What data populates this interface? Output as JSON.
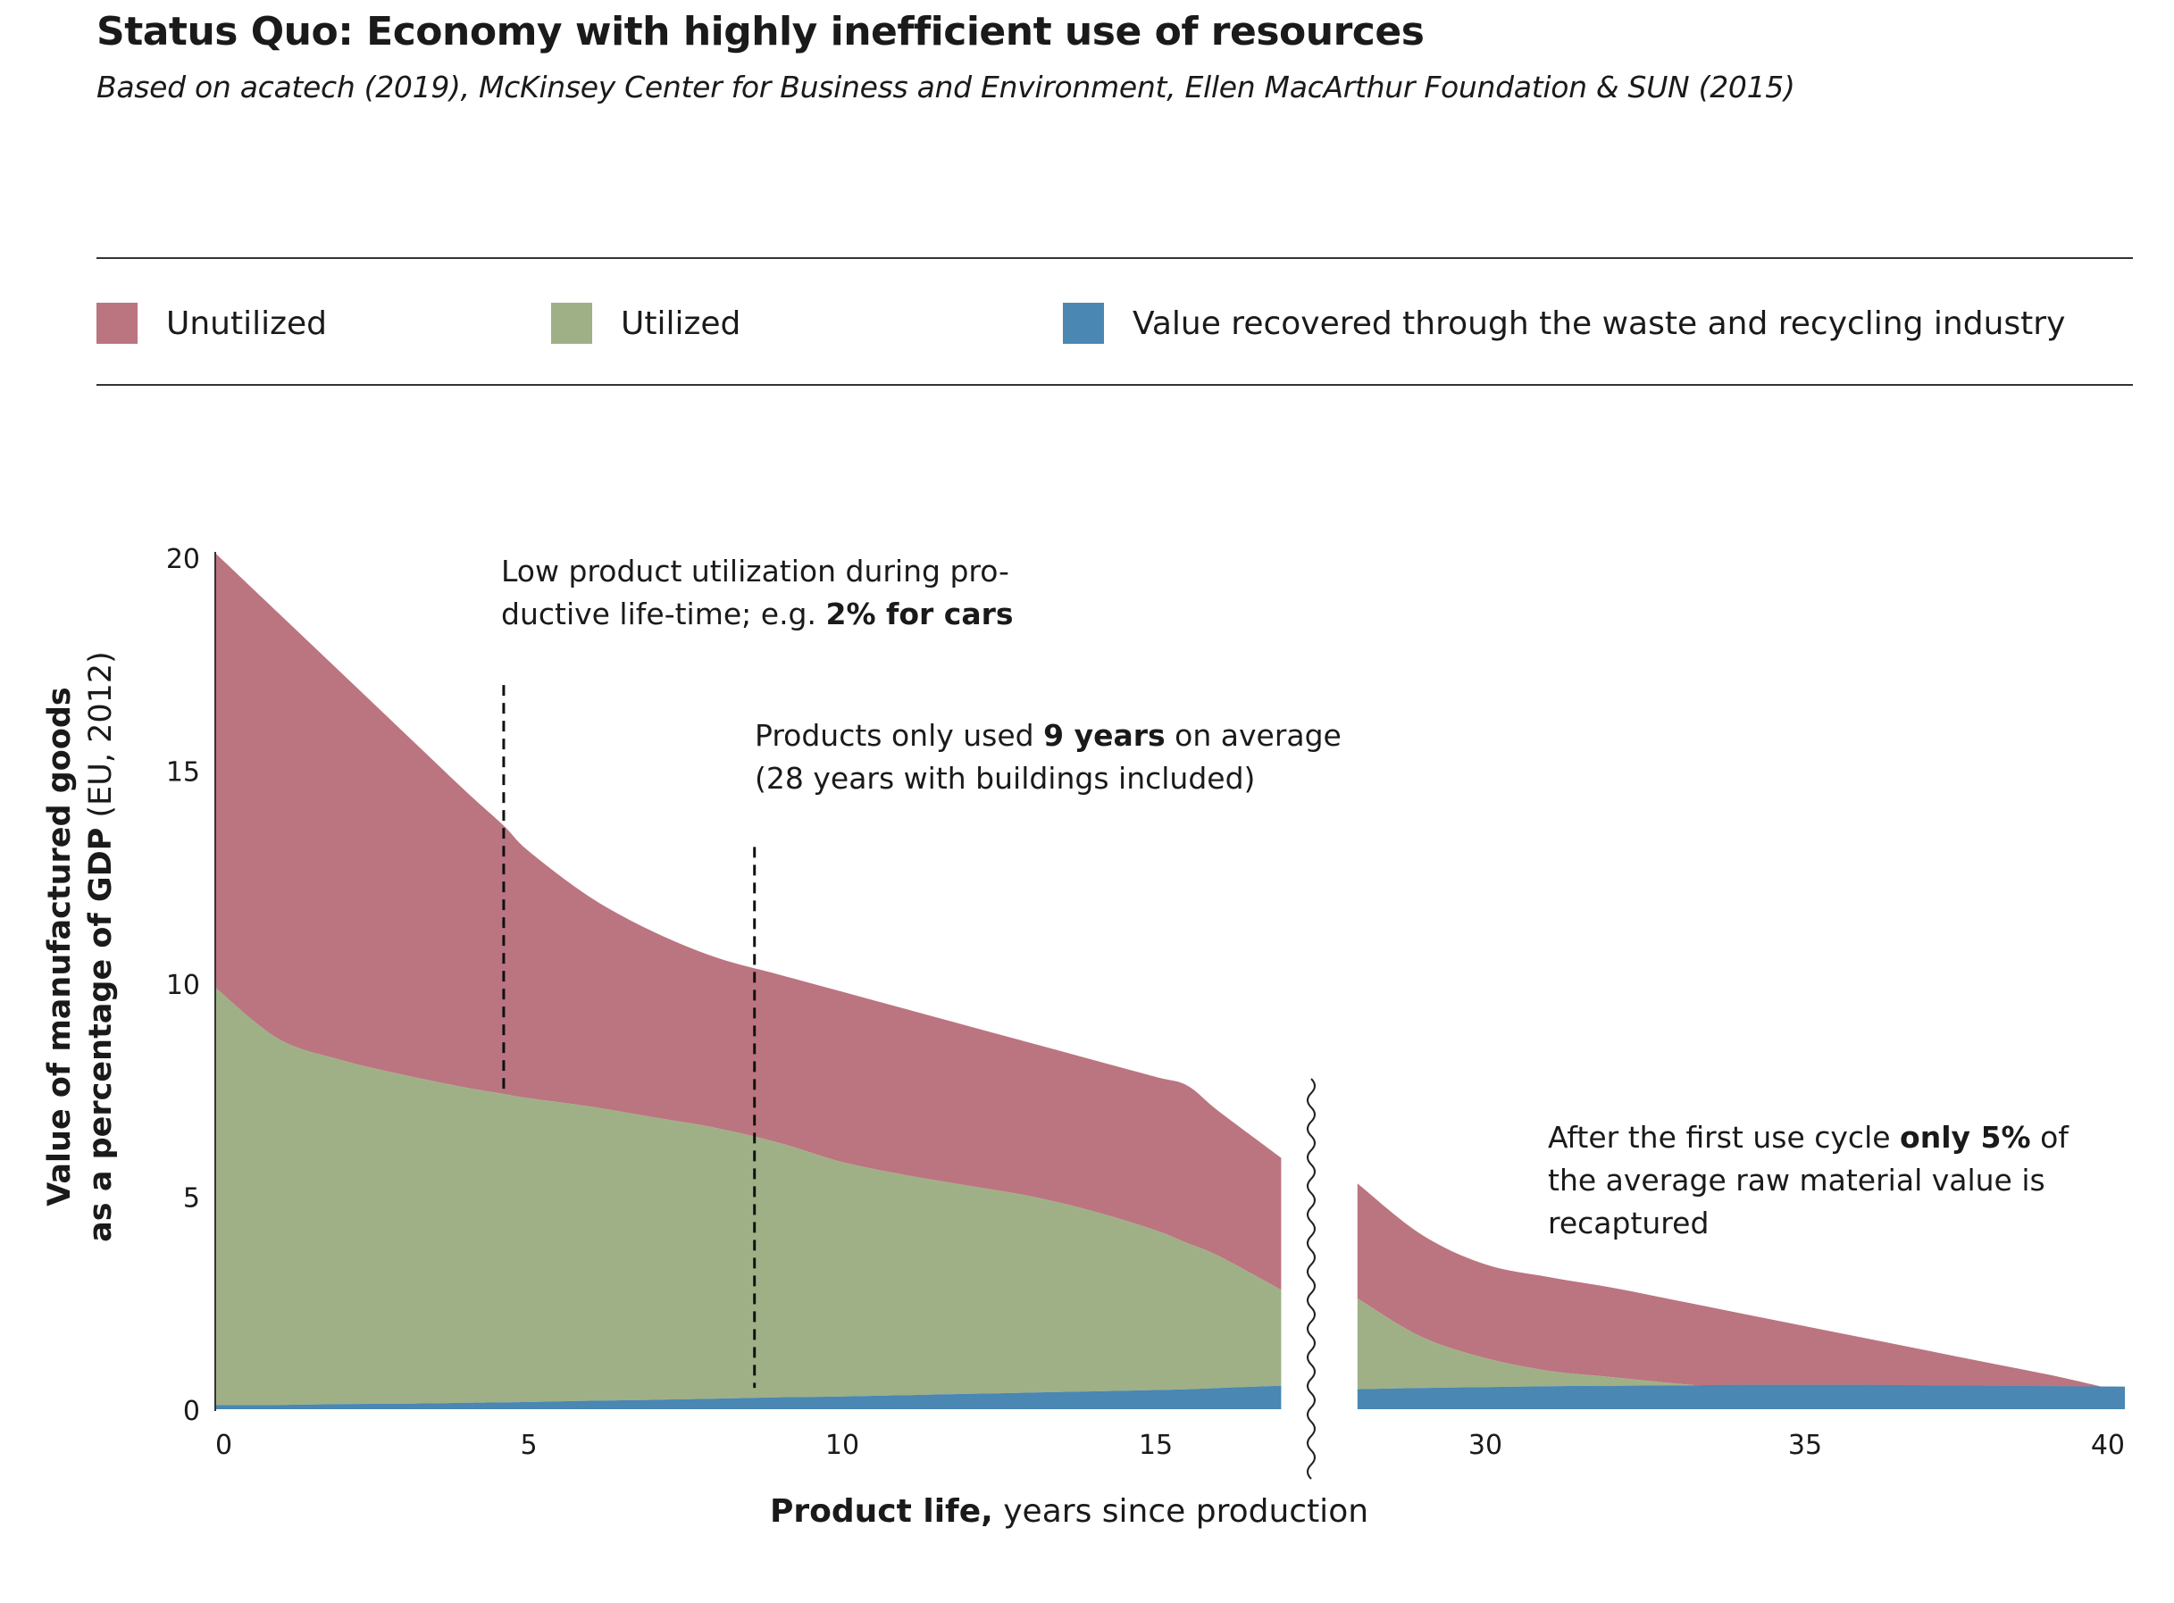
{
  "header": {
    "title": "Status Quo: Economy with highly inefficient use of resources",
    "subtitle": "Based on acatech (2019), McKinsey Center for Business and Environment, Ellen MacArthur Foundation & SUN (2015)"
  },
  "legend": [
    {
      "label": "Unutilized",
      "color": "#bb7580"
    },
    {
      "label": "Utilized",
      "color": "#9fb086"
    },
    {
      "label": "Value recovered through the waste and recycling industry",
      "color": "#4a87b2"
    }
  ],
  "axes": {
    "ylabel_bold_1": "Value of manufactured goods",
    "ylabel_bold_2": "as a percentage of GDP",
    "ylabel_normal_2": "(EU, 2012)",
    "xlabel_bold": "Product life,",
    "xlabel_normal": "years since production"
  },
  "annotations": {
    "utilization": {
      "l1": "Low product utilization during pro-",
      "l2a": "ductive life-time; e.g.",
      "l2b": "2% for cars"
    },
    "nine_years": {
      "l1a": "Products only used",
      "l1b": "9 years",
      "l1c": "on average",
      "l2": "(28 years with buildings included)"
    },
    "recapture": {
      "l1a": "After the first use cycle",
      "l1b": "only 5%",
      "l1c": "of",
      "l2": "the average raw material value is",
      "l3": "recaptured"
    }
  },
  "chart_data": {
    "type": "area",
    "stacked": true,
    "ylim": [
      0,
      20
    ],
    "yticks": [
      0,
      5,
      10,
      15,
      20
    ],
    "axis_break": "between 17 and 28 years",
    "segments": [
      {
        "x": [
          0,
          1,
          2,
          3,
          4,
          4.6,
          5,
          6,
          7,
          8,
          9,
          10,
          11,
          12,
          13,
          14,
          15,
          15.5,
          16,
          17
        ],
        "recovered": [
          0.1,
          0.1,
          0.12,
          0.13,
          0.15,
          0.16,
          0.17,
          0.2,
          0.22,
          0.25,
          0.28,
          0.3,
          0.33,
          0.36,
          0.39,
          0.42,
          0.45,
          0.47,
          0.5,
          0.55
        ],
        "utilized": [
          9.9,
          8.7,
          8.2,
          7.85,
          7.55,
          7.4,
          7.3,
          7.1,
          6.85,
          6.6,
          6.25,
          5.8,
          5.5,
          5.25,
          5.0,
          4.65,
          4.2,
          3.9,
          3.6,
          2.8
        ],
        "total": [
          20.1,
          18.7,
          17.3,
          15.9,
          14.5,
          13.7,
          13.1,
          12.0,
          11.2,
          10.6,
          10.2,
          9.8,
          9.4,
          9.0,
          8.6,
          8.2,
          7.8,
          7.6,
          7.0,
          5.9
        ]
      },
      {
        "x": [
          28,
          29,
          30,
          31,
          32,
          33,
          34,
          35,
          36,
          37,
          38,
          39,
          40
        ],
        "recovered": [
          0.47,
          0.5,
          0.52,
          0.54,
          0.55,
          0.56,
          0.57,
          0.57,
          0.57,
          0.56,
          0.55,
          0.54,
          0.53
        ],
        "utilized": [
          2.6,
          1.7,
          1.2,
          0.9,
          0.75,
          0.6,
          0.48,
          0.38,
          0.3,
          0.23,
          0.15,
          0.08,
          0.03
        ],
        "total": [
          5.3,
          4.1,
          3.4,
          3.1,
          2.85,
          2.55,
          2.25,
          1.95,
          1.65,
          1.35,
          1.05,
          0.75,
          0.4
        ]
      }
    ],
    "xticks": [
      {
        "label": "0",
        "x": 0
      },
      {
        "label": "5",
        "x": 5
      },
      {
        "label": "10",
        "x": 10
      },
      {
        "label": "15",
        "x": 15
      },
      {
        "label": "30",
        "x": 30
      },
      {
        "label": "35",
        "x": 35
      },
      {
        "label": "40",
        "x": 40
      }
    ],
    "marker_lines": [
      {
        "x": 4.6,
        "from": 7.5,
        "to": 17
      },
      {
        "x": 8.6,
        "from": 0.5,
        "to": 13.2
      }
    ]
  }
}
